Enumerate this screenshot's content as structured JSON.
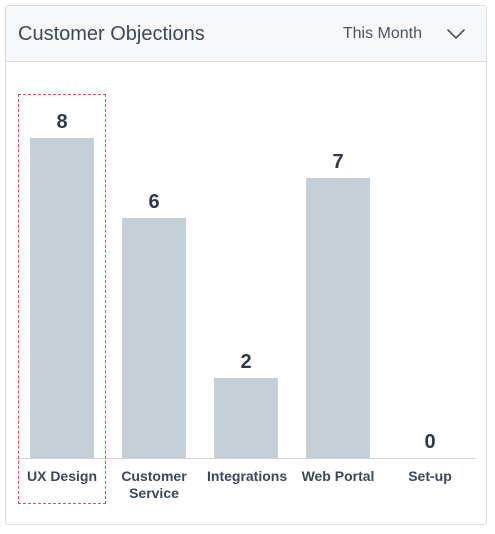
{
  "header": {
    "title": "Customer Objections",
    "period_selected": "This Month",
    "dropdown_icon": "chevron-down-icon"
  },
  "chart_data": {
    "type": "bar",
    "categories": [
      "UX Design",
      "Customer Service",
      "Integrations",
      "Web Portal",
      "Set-up"
    ],
    "values": [
      8,
      6,
      2,
      7,
      0
    ],
    "title": "",
    "xlabel": "",
    "ylabel": "",
    "ylim": [
      0,
      8
    ],
    "grid": false,
    "legend": "none",
    "selected_category": "UX Design"
  },
  "colors": {
    "bar": "#c5cfd6",
    "selection_outline": "#d9534f",
    "header_bg": "#f7f8fa",
    "text": "#3c4857"
  }
}
